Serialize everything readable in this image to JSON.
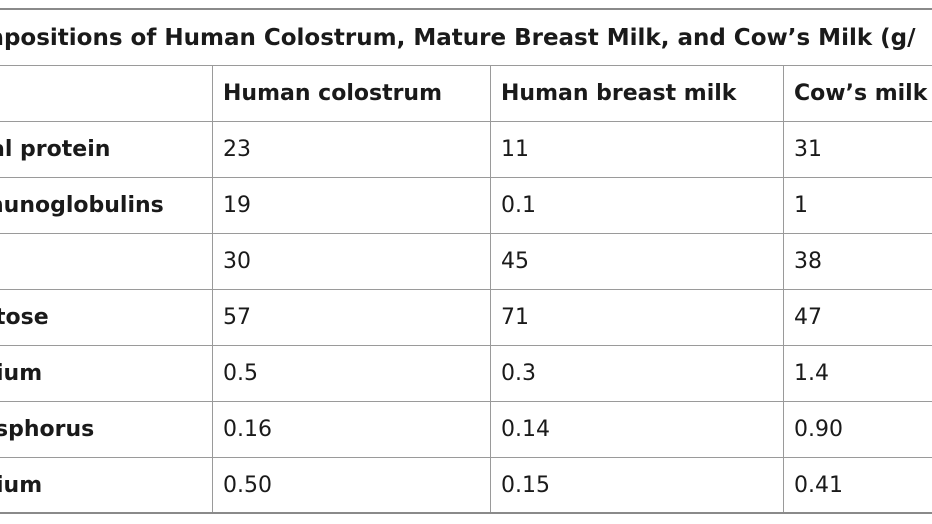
{
  "table": {
    "title": "mpositions of Human Colostrum, Mature Breast Milk, and Cow’s Milk (g/",
    "columns": [
      "Human colostrum",
      "Human breast milk",
      "Cow’s milk"
    ],
    "rows": [
      {
        "label": "al protein",
        "values": [
          "23",
          "11",
          "31"
        ]
      },
      {
        "label": "nunoglobulins",
        "values": [
          "19",
          "0.1",
          "1"
        ]
      },
      {
        "label": "",
        "values": [
          "30",
          "45",
          "38"
        ]
      },
      {
        "label": "tose",
        "values": [
          "57",
          "71",
          "47"
        ]
      },
      {
        "label": "ium",
        "values": [
          "0.5",
          "0.3",
          "1.4"
        ]
      },
      {
        "label": "sphorus",
        "values": [
          "0.16",
          "0.14",
          "0.90"
        ]
      },
      {
        "label": "ium",
        "values": [
          "0.50",
          "0.15",
          "0.41"
        ]
      }
    ]
  }
}
